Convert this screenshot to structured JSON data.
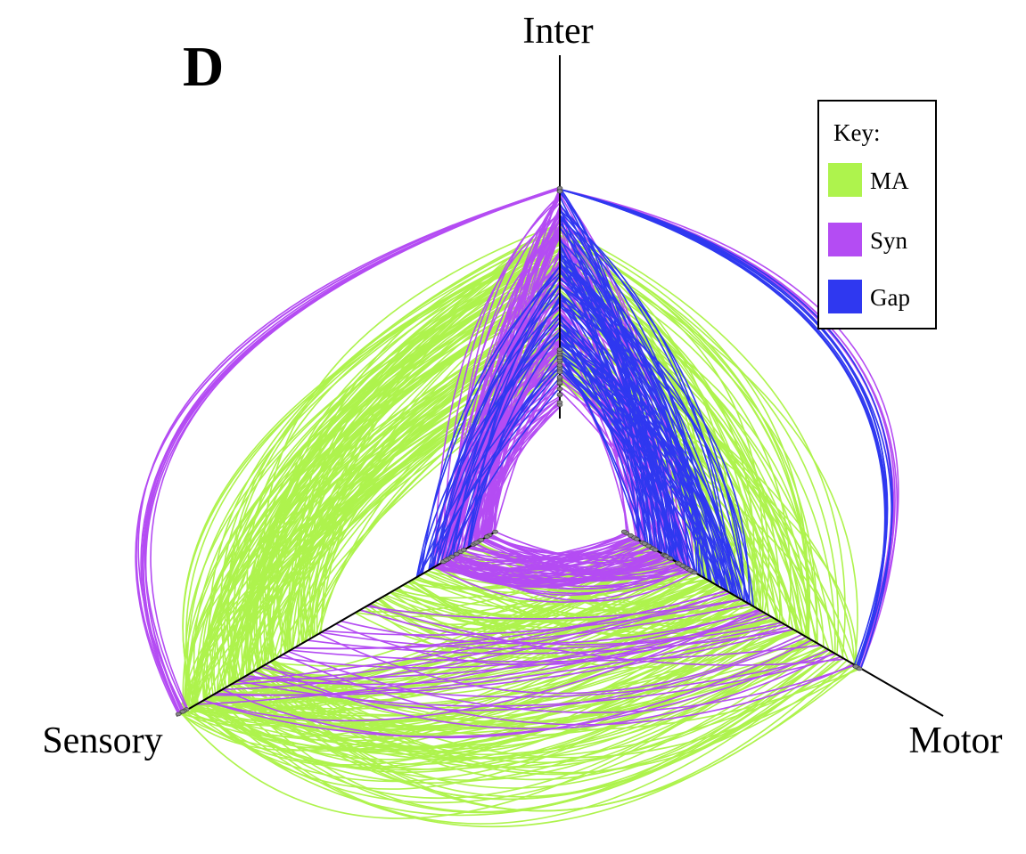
{
  "panel_letter": "D",
  "axes": [
    {
      "id": "inter",
      "label": "Inter"
    },
    {
      "id": "sensory",
      "label": "Sensory"
    },
    {
      "id": "motor",
      "label": "Motor"
    }
  ],
  "legend": {
    "title": "Key:",
    "items": [
      {
        "label": "MA",
        "color": "#aef34d"
      },
      {
        "label": "Syn",
        "color": "#b44cf3"
      },
      {
        "label": "Gap",
        "color": "#2f38f0"
      }
    ]
  },
  "colors": {
    "axis": "#000000",
    "node": "#888888"
  }
}
